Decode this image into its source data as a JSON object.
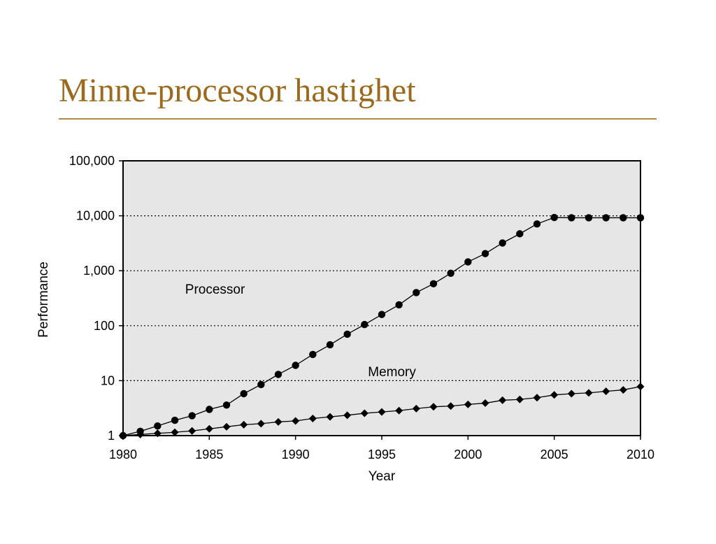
{
  "slide": {
    "title": "Minne-processor hastighet",
    "accent_color": "#9c6a1c"
  },
  "chart_data": {
    "type": "line",
    "xlabel": "Year",
    "ylabel": "Performance",
    "xlim": [
      1980,
      2010
    ],
    "ylim": [
      1,
      100000
    ],
    "yscale": "log",
    "x_ticks": [
      1980,
      1985,
      1990,
      1995,
      2000,
      2005,
      2010
    ],
    "x_tick_labels": [
      "1980",
      "1985",
      "1990",
      "1995",
      "2000",
      "2005",
      "2010"
    ],
    "y_ticks": [
      1,
      10,
      100,
      1000,
      10000,
      100000
    ],
    "y_tick_labels": [
      "1",
      "10",
      "100",
      "1,000",
      "10,000",
      "100,000"
    ],
    "grid": "horizontal dotted",
    "plot_background": "#e6e6e6",
    "x": [
      1980,
      1981,
      1982,
      1983,
      1984,
      1985,
      1986,
      1987,
      1988,
      1989,
      1990,
      1991,
      1992,
      1993,
      1994,
      1995,
      1996,
      1997,
      1998,
      1999,
      2000,
      2001,
      2002,
      2003,
      2004,
      2005,
      2006,
      2007,
      2008,
      2009,
      2010
    ],
    "series": [
      {
        "name": "Processor",
        "marker": "circle",
        "label_x": 1983.6,
        "label_y": 380,
        "values": [
          1.0,
          1.2,
          1.5,
          1.9,
          2.3,
          3.0,
          3.6,
          5.8,
          8.5,
          13,
          19,
          30,
          45,
          70,
          105,
          160,
          240,
          400,
          580,
          900,
          1450,
          2050,
          3200,
          4700,
          7100,
          9300,
          9200,
          9200,
          9200,
          9200,
          9200
        ]
      },
      {
        "name": "Memory",
        "marker": "diamond",
        "label_x": 1994.2,
        "label_y": 12,
        "values": [
          1.0,
          1.05,
          1.1,
          1.15,
          1.22,
          1.33,
          1.45,
          1.58,
          1.65,
          1.78,
          1.85,
          2.05,
          2.2,
          2.35,
          2.55,
          2.7,
          2.85,
          3.1,
          3.35,
          3.45,
          3.7,
          3.9,
          4.4,
          4.55,
          4.9,
          5.5,
          5.8,
          6.0,
          6.4,
          6.8,
          7.8
        ]
      }
    ]
  }
}
